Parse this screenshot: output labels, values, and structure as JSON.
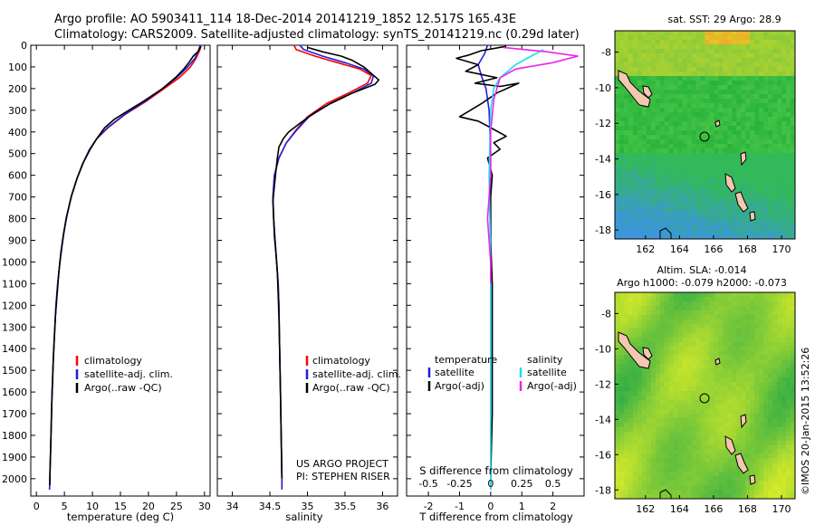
{
  "title": {
    "line1": "Argo profile: AO 5903411_114 18-Dec-2014 20141219_1852 12.517S 165.43E",
    "line2": "Climatology: CARS2009. Satellite-adjusted climatology: synTS_20141219.nc (0.29d later)"
  },
  "colors": {
    "climatology": "#ff0000",
    "satellite": "#1f1fdd",
    "argo": "#000000",
    "satellite_salinity": "#22ddee",
    "argo_salinity": "#ee22ee"
  },
  "chart_data": [
    {
      "type": "line",
      "name": "temperature-profile",
      "xlabel": "temperature (deg C)",
      "ylabel": "",
      "xlim": [
        -1,
        31
      ],
      "ylim": [
        2080,
        0
      ],
      "xticks": [
        0,
        5,
        10,
        15,
        20,
        25,
        30
      ],
      "yticks": [
        0,
        100,
        200,
        300,
        400,
        500,
        600,
        700,
        800,
        900,
        1000,
        1100,
        1200,
        1300,
        1400,
        1500,
        1600,
        1700,
        1800,
        1900,
        2000
      ],
      "legend": [
        "climatology",
        "satellite-adj. clim.",
        "Argo(..raw -QC)"
      ],
      "legend_position": "lower-center",
      "series": [
        {
          "name": "climatology",
          "color": "#ff0000",
          "points": [
            [
              29.3,
              0
            ],
            [
              29.2,
              20
            ],
            [
              28.5,
              60
            ],
            [
              27.5,
              100
            ],
            [
              25.5,
              150
            ],
            [
              22.8,
              200
            ],
            [
              19.5,
              260
            ],
            [
              15.8,
              320
            ],
            [
              12.8,
              380
            ],
            [
              10.8,
              430
            ],
            [
              9.5,
              480
            ],
            [
              8.2,
              550
            ],
            [
              7.2,
              620
            ],
            [
              6.2,
              700
            ],
            [
              5.3,
              800
            ],
            [
              4.7,
              900
            ],
            [
              4.2,
              1000
            ],
            [
              3.8,
              1100
            ],
            [
              3.5,
              1200
            ],
            [
              3.3,
              1300
            ],
            [
              3.1,
              1400
            ],
            [
              2.95,
              1500
            ],
            [
              2.8,
              1600
            ],
            [
              2.7,
              1700
            ],
            [
              2.6,
              1800
            ],
            [
              2.5,
              1900
            ],
            [
              2.4,
              2000
            ],
            [
              2.35,
              2050
            ]
          ]
        },
        {
          "name": "satellite-adj. clim.",
          "color": "#1f1fdd",
          "points": [
            [
              29.2,
              0
            ],
            [
              29.0,
              20
            ],
            [
              28.3,
              60
            ],
            [
              27.0,
              100
            ],
            [
              25.0,
              150
            ],
            [
              22.5,
              200
            ],
            [
              19.3,
              260
            ],
            [
              15.7,
              320
            ],
            [
              12.7,
              380
            ],
            [
              10.8,
              430
            ],
            [
              9.5,
              480
            ],
            [
              8.2,
              550
            ],
            [
              7.2,
              620
            ],
            [
              6.2,
              700
            ],
            [
              5.3,
              800
            ],
            [
              4.7,
              900
            ],
            [
              4.2,
              1000
            ],
            [
              3.8,
              1100
            ],
            [
              3.5,
              1200
            ],
            [
              3.3,
              1300
            ],
            [
              3.1,
              1400
            ],
            [
              2.95,
              1500
            ],
            [
              2.8,
              1600
            ],
            [
              2.7,
              1700
            ],
            [
              2.6,
              1800
            ],
            [
              2.5,
              1900
            ],
            [
              2.4,
              2000
            ],
            [
              2.35,
              2050
            ]
          ]
        },
        {
          "name": "Argo(..raw -QC)",
          "color": "#000000",
          "points": [
            [
              29.4,
              5
            ],
            [
              28.8,
              30
            ],
            [
              28.0,
              50
            ],
            [
              27.2,
              80
            ],
            [
              26.3,
              110
            ],
            [
              24.8,
              150
            ],
            [
              22.5,
              200
            ],
            [
              19.0,
              260
            ],
            [
              16.5,
              300
            ],
            [
              14.0,
              340
            ],
            [
              12.2,
              380
            ],
            [
              10.8,
              430
            ],
            [
              9.6,
              480
            ],
            [
              8.4,
              540
            ],
            [
              7.3,
              610
            ],
            [
              6.3,
              690
            ],
            [
              5.5,
              780
            ],
            [
              4.9,
              860
            ],
            [
              4.4,
              950
            ],
            [
              4.0,
              1050
            ],
            [
              3.7,
              1150
            ],
            [
              3.4,
              1250
            ],
            [
              3.2,
              1350
            ],
            [
              3.0,
              1450
            ],
            [
              2.9,
              1550
            ],
            [
              2.75,
              1650
            ],
            [
              2.65,
              1750
            ],
            [
              2.55,
              1850
            ],
            [
              2.45,
              1950
            ],
            [
              2.4,
              2030
            ]
          ]
        }
      ]
    },
    {
      "type": "line",
      "name": "salinity-profile",
      "xlabel": "salinity",
      "ylabel": "",
      "xlim": [
        33.8,
        36.2
      ],
      "ylim": [
        2080,
        0
      ],
      "xticks": [
        34,
        34.5,
        35,
        35.5,
        36
      ],
      "xticklabels": [
        "34",
        "34.5",
        "35",
        "35.5",
        "36"
      ],
      "legend": [
        "climatology",
        "satellite-adj. clim.",
        "Argo(..raw -QC)"
      ],
      "legend_position": "lower-center",
      "annotation": [
        "US ARGO PROJECT",
        "PI: STEPHEN RISER"
      ],
      "series": [
        {
          "name": "climatology",
          "color": "#ff0000",
          "points": [
            [
              34.82,
              0
            ],
            [
              34.85,
              20
            ],
            [
              35.1,
              50
            ],
            [
              35.4,
              80
            ],
            [
              35.7,
              110
            ],
            [
              35.85,
              140
            ],
            [
              35.8,
              175
            ],
            [
              35.55,
              220
            ],
            [
              35.25,
              270
            ],
            [
              35.0,
              330
            ],
            [
              34.85,
              390
            ],
            [
              34.72,
              450
            ],
            [
              34.62,
              520
            ],
            [
              34.56,
              600
            ],
            [
              34.54,
              700
            ],
            [
              34.55,
              800
            ],
            [
              34.57,
              900
            ],
            [
              34.59,
              1000
            ],
            [
              34.61,
              1100
            ],
            [
              34.62,
              1200
            ],
            [
              34.63,
              1400
            ],
            [
              34.64,
              1600
            ],
            [
              34.65,
              1800
            ],
            [
              34.66,
              2000
            ],
            [
              34.66,
              2050
            ]
          ]
        },
        {
          "name": "satellite-adj. clim.",
          "color": "#1f1fdd",
          "points": [
            [
              34.9,
              0
            ],
            [
              34.95,
              20
            ],
            [
              35.2,
              50
            ],
            [
              35.5,
              80
            ],
            [
              35.75,
              110
            ],
            [
              35.88,
              140
            ],
            [
              35.85,
              175
            ],
            [
              35.6,
              220
            ],
            [
              35.3,
              270
            ],
            [
              35.02,
              330
            ],
            [
              34.86,
              390
            ],
            [
              34.72,
              450
            ],
            [
              34.62,
              520
            ],
            [
              34.56,
              600
            ],
            [
              34.54,
              700
            ],
            [
              34.55,
              800
            ],
            [
              34.57,
              900
            ],
            [
              34.59,
              1000
            ],
            [
              34.61,
              1100
            ],
            [
              34.62,
              1200
            ],
            [
              34.63,
              1400
            ],
            [
              34.64,
              1600
            ],
            [
              34.65,
              1800
            ],
            [
              34.66,
              2000
            ],
            [
              34.66,
              2050
            ]
          ]
        },
        {
          "name": "Argo(..raw -QC)",
          "color": "#000000",
          "points": [
            [
              35.0,
              10
            ],
            [
              35.2,
              30
            ],
            [
              35.45,
              50
            ],
            [
              35.6,
              70
            ],
            [
              35.75,
              100
            ],
            [
              35.85,
              130
            ],
            [
              35.95,
              160
            ],
            [
              35.9,
              180
            ],
            [
              35.6,
              220
            ],
            [
              35.3,
              270
            ],
            [
              35.1,
              310
            ],
            [
              34.9,
              360
            ],
            [
              34.75,
              400
            ],
            [
              34.68,
              430
            ],
            [
              34.62,
              470
            ],
            [
              34.6,
              520
            ],
            [
              34.58,
              580
            ],
            [
              34.56,
              650
            ],
            [
              34.54,
              720
            ],
            [
              34.55,
              800
            ],
            [
              34.56,
              880
            ],
            [
              34.58,
              960
            ],
            [
              34.6,
              1050
            ],
            [
              34.61,
              1150
            ],
            [
              34.62,
              1250
            ],
            [
              34.63,
              1400
            ],
            [
              34.64,
              1600
            ],
            [
              34.65,
              1800
            ],
            [
              34.66,
              2000
            ]
          ]
        }
      ]
    },
    {
      "type": "line",
      "name": "difference-profile",
      "xlabel": "T difference from climatology",
      "xlabel_top": "S difference from climatology",
      "xlim": [
        -2.7,
        3.0
      ],
      "ylim": [
        2080,
        0
      ],
      "xticks": [
        -2,
        -1,
        0,
        1,
        2
      ],
      "xticks_top": [
        -0.5,
        -0.25,
        0,
        0.25,
        0.5
      ],
      "xticklabels_top": [
        "-0.5",
        "-0.25",
        "0",
        "0.25",
        "0.5"
      ],
      "legend_groups": [
        "temperature",
        "salinity"
      ],
      "legend": [
        "satellite",
        "Argo(-adj)",
        "satellite",
        "Argo(-adj)"
      ],
      "legend_position": "lower-center",
      "series": [
        {
          "name": "satellite",
          "color": "#1f1fdd",
          "points": [
            [
              -0.1,
              0
            ],
            [
              -0.2,
              40
            ],
            [
              -0.4,
              90
            ],
            [
              -0.3,
              140
            ],
            [
              -0.15,
              200
            ],
            [
              -0.05,
              300
            ],
            [
              0.0,
              500
            ],
            [
              0.0,
              1000
            ],
            [
              0.0,
              2050
            ]
          ]
        },
        {
          "name": "Argo(-adj)",
          "color": "#000000",
          "points": [
            [
              0.5,
              5
            ],
            [
              -0.3,
              25
            ],
            [
              -0.7,
              45
            ],
            [
              -1.1,
              60
            ],
            [
              -0.4,
              90
            ],
            [
              -0.8,
              120
            ],
            [
              0.2,
              150
            ],
            [
              -0.5,
              175
            ],
            [
              0.3,
              190
            ],
            [
              0.9,
              175
            ],
            [
              0.2,
              220
            ],
            [
              -0.3,
              270
            ],
            [
              -1.0,
              330
            ],
            [
              -0.4,
              350
            ],
            [
              0.0,
              380
            ],
            [
              0.5,
              420
            ],
            [
              0.1,
              450
            ],
            [
              0.3,
              480
            ],
            [
              -0.1,
              520
            ],
            [
              0.05,
              600
            ],
            [
              0.0,
              700
            ],
            [
              0.0,
              900
            ],
            [
              0.05,
              1100
            ],
            [
              0.05,
              1400
            ],
            [
              0.05,
              1700
            ],
            [
              0.0,
              2000
            ]
          ]
        },
        {
          "name": "satellite",
          "color": "#22ddee",
          "points": [
            [
              1.7,
              20
            ],
            [
              1.3,
              50
            ],
            [
              0.8,
              90
            ],
            [
              0.3,
              150
            ],
            [
              0.1,
              200
            ],
            [
              0.0,
              300
            ],
            [
              -0.05,
              600
            ],
            [
              0.0,
              1000
            ],
            [
              0.0,
              2050
            ]
          ]
        },
        {
          "name": "Argo(-adj)",
          "color": "#ee22ee",
          "points": [
            [
              0.4,
              10
            ],
            [
              1.8,
              30
            ],
            [
              2.8,
              50
            ],
            [
              2.0,
              80
            ],
            [
              0.8,
              110
            ],
            [
              0.3,
              150
            ],
            [
              0.1,
              250
            ],
            [
              0.0,
              400
            ],
            [
              0.0,
              600
            ],
            [
              -0.1,
              800
            ],
            [
              0.0,
              1000
            ],
            [
              0.0,
              1100
            ]
          ]
        }
      ]
    },
    {
      "type": "heatmap",
      "name": "sst-map",
      "title": "sat. SST: 29 Argo: 28.9",
      "xlim": [
        160.2,
        170.8
      ],
      "ylim": [
        -18.5,
        -6.8
      ],
      "xticks": [
        162,
        164,
        166,
        168,
        170
      ],
      "yticks": [
        -8,
        -10,
        -12,
        -14,
        -16,
        -18
      ],
      "profile_location": [
        165.43,
        -12.517
      ]
    },
    {
      "type": "heatmap",
      "name": "sla-map",
      "title_lines": [
        "Altim. SLA: -0.014",
        "Argo h1000: -0.079 h2000: -0.073"
      ],
      "xlim": [
        160.2,
        170.8
      ],
      "ylim": [
        -18.5,
        -6.8
      ],
      "xticks": [
        162,
        164,
        166,
        168,
        170
      ],
      "yticks": [
        -8,
        -10,
        -12,
        -14,
        -16,
        -18
      ],
      "profile_location": [
        165.43,
        -12.517
      ]
    }
  ],
  "footer": {
    "imos_stamp": "©IMOS 20-Jan-2015 13:52:26"
  }
}
